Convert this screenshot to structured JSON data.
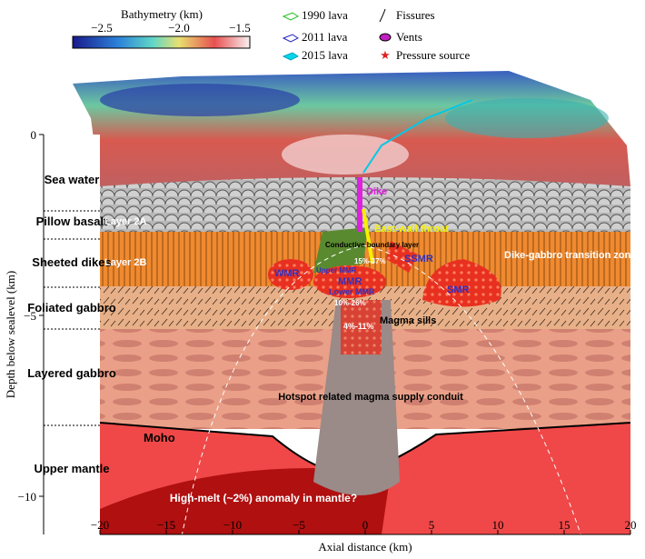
{
  "colorbar": {
    "title": "Bathymetry (km)",
    "ticks": [
      "−2.5",
      "−2.0",
      "−1.5"
    ]
  },
  "legend": [
    "1990 lava",
    "2011 lava",
    "2015 lava",
    "Fissures",
    "Vents",
    "Pressure source"
  ],
  "axes": {
    "y_label": "Depth below sealevel (km)",
    "y_ticks": [
      "0",
      "−5",
      "−10"
    ],
    "x_label": "Axial distance (km)",
    "x_ticks": [
      "−20",
      "−15",
      "−10",
      "−5",
      "0",
      "5",
      "10",
      "15",
      "20"
    ]
  },
  "layers": [
    "Sea water",
    "Pillow basalt",
    "Sheeted dikes",
    "Foliated gabbro",
    "Layered gabbro",
    "Upper mantle"
  ],
  "annotations": [
    "Layer 2A",
    "Layer 2B",
    "Conductive boundary layer",
    "East-wall throat",
    "Dike",
    "SSMR",
    "Dike-gabbro transition zone",
    "WMR",
    "Upper MMR",
    "15%-37%",
    "MMR",
    "Lower MMR",
    "10%-26%",
    "SMR",
    "Magma sills",
    "4%-11%",
    "Hotspot related magma supply conduit",
    "Moho",
    "High-melt (~2%) anomaly in mantle?"
  ]
}
